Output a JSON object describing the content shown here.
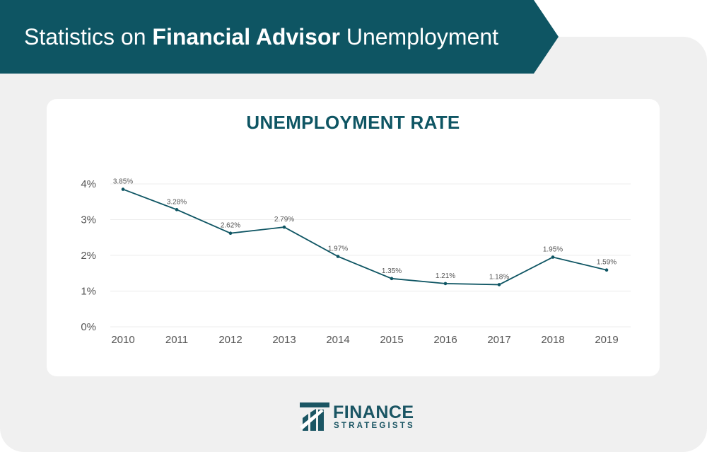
{
  "header": {
    "title_part1": "Statistics on ",
    "title_bold": "Financial Advisor",
    "title_part2": " Unemployment"
  },
  "colors": {
    "banner": "#0e5563",
    "line": "#0e5563",
    "background": "#f0f0f0",
    "panel": "#ffffff"
  },
  "chart_data": {
    "type": "line",
    "title": "UNEMPLOYMENT RATE",
    "x": [
      "2010",
      "2011",
      "2012",
      "2013",
      "2014",
      "2015",
      "2016",
      "2017",
      "2018",
      "2019"
    ],
    "series": [
      {
        "values": [
          3.85,
          3.28,
          2.62,
          2.79,
          1.97,
          1.35,
          1.21,
          1.18,
          1.95,
          1.59
        ],
        "data_labels": [
          "3.85%",
          "3.28%",
          "2.62%",
          "2.79%",
          "1.97%",
          "1.35%",
          "1.21%",
          "1.18%",
          "1.95%",
          "1.59%"
        ]
      }
    ],
    "y_ticks": [
      0,
      1,
      2,
      3,
      4
    ],
    "y_tick_labels": [
      "0%",
      "1%",
      "2%",
      "3%",
      "4%"
    ],
    "ylim": [
      0,
      4
    ],
    "grid": true,
    "legend": "none"
  },
  "logo": {
    "line1": "FINANCE",
    "line2": "STRATEGISTS",
    "icon": "finance-strategists-logo-icon"
  }
}
